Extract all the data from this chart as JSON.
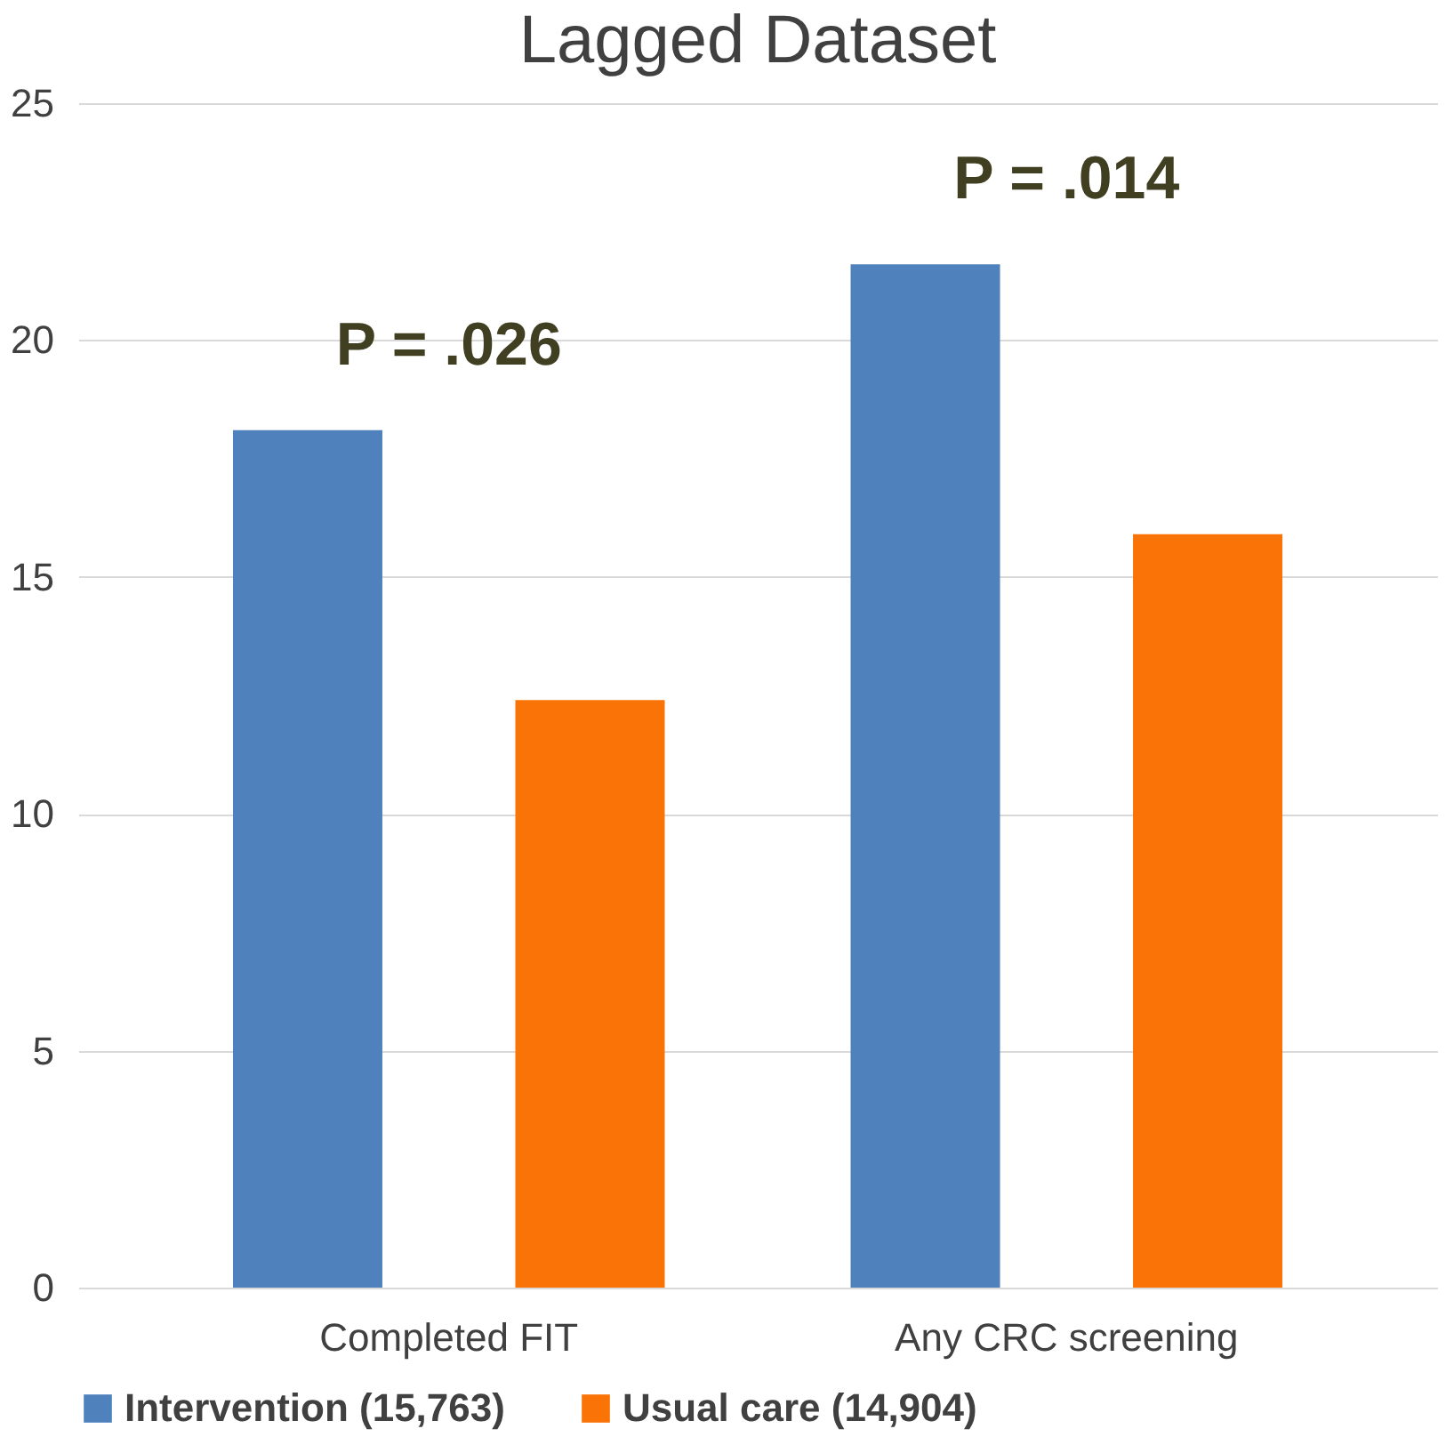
{
  "chart_data": {
    "type": "bar",
    "title": "Lagged Dataset",
    "categories": [
      "Completed FIT",
      "Any CRC screening"
    ],
    "series": [
      {
        "name": "Intervention (15,763)",
        "color": "#4f81bd",
        "values": [
          18.1,
          21.6
        ]
      },
      {
        "name": "Usual care (14,904)",
        "color": "#f97306",
        "values": [
          12.4,
          15.9
        ]
      }
    ],
    "ylim": [
      0,
      25
    ],
    "yticks": [
      0,
      5,
      10,
      15,
      20,
      25
    ],
    "grid": "y",
    "legend": "bottom",
    "annotations": [
      "P = .026",
      "P = .014"
    ]
  }
}
